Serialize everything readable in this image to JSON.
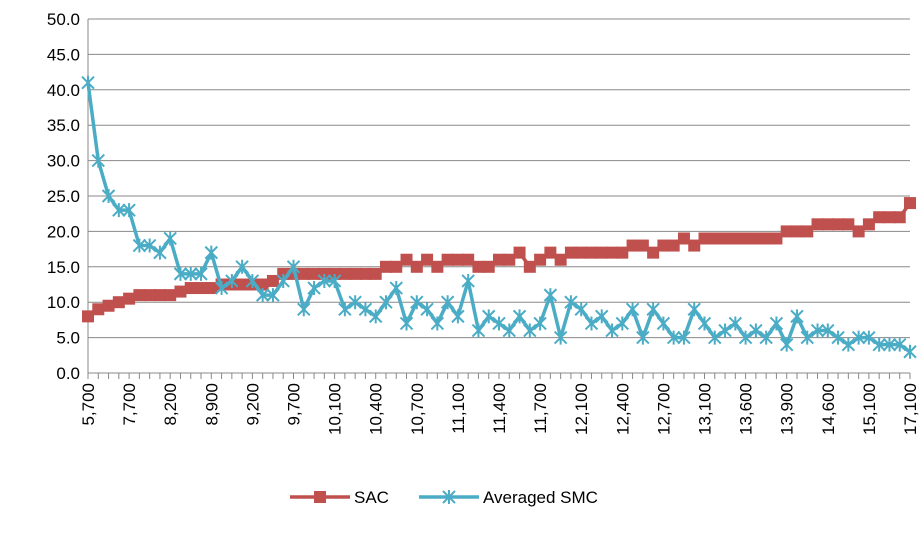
{
  "chart_data": {
    "type": "line",
    "categories": [
      "5,700",
      null,
      null,
      null,
      "7,700",
      null,
      null,
      null,
      "8,200",
      null,
      null,
      null,
      "8,900",
      null,
      null,
      null,
      "9,200",
      null,
      null,
      null,
      "9,700",
      null,
      null,
      null,
      "10,100",
      null,
      null,
      null,
      "10,400",
      null,
      null,
      null,
      "10,700",
      null,
      null,
      null,
      "11,100",
      null,
      null,
      null,
      "11,400",
      null,
      null,
      null,
      "11,700",
      null,
      null,
      null,
      "12,100",
      null,
      null,
      null,
      "12,400",
      null,
      null,
      null,
      "12,700",
      null,
      null,
      null,
      "13,100",
      null,
      null,
      null,
      "13,600",
      null,
      null,
      null,
      "13,900",
      null,
      null,
      null,
      "14,600",
      null,
      null,
      null,
      "15,100",
      null,
      null,
      null,
      "17,100"
    ],
    "series": [
      {
        "name": "SAC",
        "color": "#c0504d",
        "marker": "square",
        "values": [
          8,
          9,
          9.5,
          10,
          10.5,
          11,
          11,
          11,
          11,
          11.5,
          12,
          12,
          12,
          12.5,
          12.5,
          12.5,
          12.5,
          12.5,
          13,
          14,
          14,
          14,
          14,
          14,
          14,
          14,
          14,
          14,
          14,
          15,
          15,
          16,
          15,
          16,
          15,
          16,
          16,
          16,
          15,
          15,
          16,
          16,
          17,
          15,
          16,
          17,
          16,
          17,
          17,
          17,
          17,
          17,
          17,
          18,
          18,
          17,
          18,
          18,
          19,
          18,
          19,
          19,
          19,
          19,
          19,
          19,
          19,
          19,
          20,
          20,
          20,
          21,
          21,
          21,
          21,
          20,
          21,
          22,
          22,
          22,
          24
        ]
      },
      {
        "name": "Averaged SMC",
        "color": "#4bacc6",
        "marker": "asterisk",
        "values": [
          41,
          30,
          25,
          23,
          23,
          18,
          18,
          17,
          19,
          14,
          14,
          14,
          17,
          12,
          13,
          15,
          13,
          11,
          11,
          13,
          15,
          9,
          12,
          13,
          13,
          9,
          10,
          9,
          8,
          10,
          12,
          7,
          10,
          9,
          7,
          10,
          8,
          13,
          6,
          8,
          7,
          6,
          8,
          6,
          7,
          11,
          5,
          10,
          9,
          7,
          8,
          6,
          7,
          9,
          5,
          9,
          7,
          5,
          5,
          9,
          7,
          5,
          6,
          7,
          5,
          6,
          5,
          7,
          4,
          8,
          5,
          6,
          6,
          5,
          4,
          5,
          5,
          4,
          4,
          4,
          3
        ]
      }
    ],
    "ylim": [
      0,
      50
    ],
    "yticks": [
      {
        "value": 0,
        "label": "0.0"
      },
      {
        "value": 5,
        "label": "5.0"
      },
      {
        "value": 10,
        "label": "10.0"
      },
      {
        "value": 15,
        "label": "15.0"
      },
      {
        "value": 20,
        "label": "20.0"
      },
      {
        "value": 25,
        "label": "25.0"
      },
      {
        "value": 30,
        "label": "30.0"
      },
      {
        "value": 35,
        "label": "35.0"
      },
      {
        "value": 40,
        "label": "40.0"
      },
      {
        "value": 45,
        "label": "45.0"
      },
      {
        "value": 50,
        "label": "50.0"
      }
    ],
    "grid": true,
    "legend": "bottom"
  }
}
